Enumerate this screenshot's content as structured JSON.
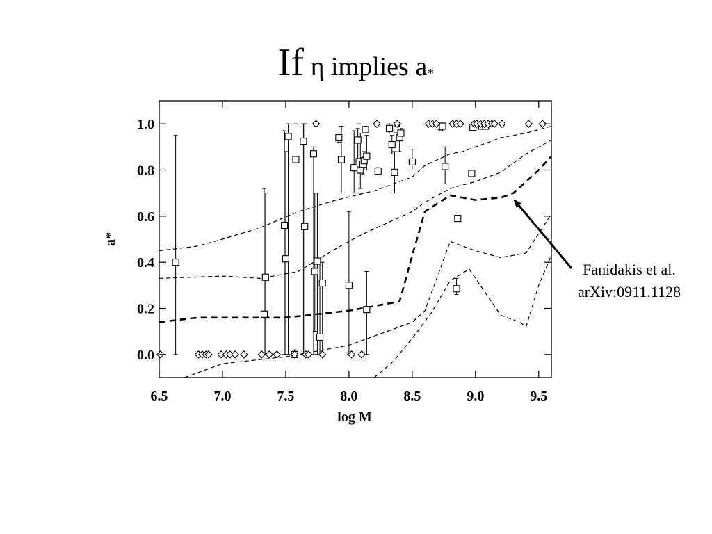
{
  "slide": {
    "title_main": "If",
    "title_rest": " η implies a",
    "title_sub": "*"
  },
  "annotation": {
    "line1": "Fanidakis et al.",
    "line2": "arXiv:0911.1128"
  },
  "chart_data": {
    "type": "scatter",
    "title": "",
    "xlabel": "log M",
    "ylabel": "a*",
    "xlim": [
      6.5,
      9.6
    ],
    "ylim": [
      -0.1,
      1.1
    ],
    "xticks": [
      "6.5",
      "7.0",
      "7.5",
      "8.0",
      "8.5",
      "9.0",
      "9.5"
    ],
    "yticks": [
      "0.0",
      "0.2",
      "0.4",
      "0.6",
      "0.8",
      "1.0"
    ],
    "xtick_values": [
      6.5,
      7.0,
      7.5,
      8.0,
      8.5,
      9.0,
      9.5
    ],
    "ytick_values": [
      0.0,
      0.2,
      0.4,
      0.6,
      0.8,
      1.0
    ],
    "grid": false,
    "series": [
      {
        "marker": "square",
        "points": [
          {
            "x": 6.63,
            "y": 0.4,
            "lo": 0.0,
            "hi": 0.95
          },
          {
            "x": 7.33,
            "y": 0.175,
            "lo": 0.0,
            "hi": 0.72
          },
          {
            "x": 7.34,
            "y": 0.335,
            "lo": 0.0,
            "hi": 0.7
          },
          {
            "x": 7.49,
            "y": 0.56,
            "lo": 0.0,
            "hi": 0.97
          },
          {
            "x": 7.5,
            "y": 0.415,
            "lo": 0.0,
            "hi": 0.88
          },
          {
            "x": 7.52,
            "y": 0.945,
            "lo": 0.0,
            "hi": 1.0
          },
          {
            "x": 7.57,
            "y": 0.0,
            "lo": -0.01,
            "hi": 0.02
          },
          {
            "x": 7.58,
            "y": 0.845,
            "lo": 0.0,
            "hi": 1.0
          },
          {
            "x": 7.64,
            "y": 0.925,
            "lo": 0.0,
            "hi": 1.0
          },
          {
            "x": 7.65,
            "y": 0.555,
            "lo": 0.0,
            "hi": 1.0
          },
          {
            "x": 7.72,
            "y": 0.87,
            "lo": 0.0,
            "hi": 0.9
          },
          {
            "x": 7.73,
            "y": 0.36,
            "lo": 0.1,
            "hi": 0.7
          },
          {
            "x": 7.75,
            "y": 0.405,
            "lo": 0.0,
            "hi": 0.7
          },
          {
            "x": 7.77,
            "y": 0.075,
            "lo": 0.0,
            "hi": 0.4
          },
          {
            "x": 7.79,
            "y": 0.31,
            "lo": 0.0,
            "hi": 0.4
          },
          {
            "x": 7.92,
            "y": 0.94,
            "lo": 0.92,
            "hi": 0.96
          },
          {
            "x": 7.94,
            "y": 0.845,
            "lo": 0.7,
            "hi": 0.99
          },
          {
            "x": 8.0,
            "y": 0.3,
            "lo": 0.0,
            "hi": 0.62
          },
          {
            "x": 8.04,
            "y": 0.81,
            "lo": 0.7,
            "hi": 0.97
          },
          {
            "x": 8.07,
            "y": 0.93,
            "lo": 0.85,
            "hi": 0.98
          },
          {
            "x": 8.08,
            "y": 0.835,
            "lo": 0.7,
            "hi": 1.0
          },
          {
            "x": 8.09,
            "y": 0.8,
            "lo": 0.72,
            "hi": 0.96
          },
          {
            "x": 8.11,
            "y": 0.825,
            "lo": 0.78,
            "hi": 0.86
          },
          {
            "x": 8.12,
            "y": 0.84,
            "lo": 0.8,
            "hi": 0.88
          },
          {
            "x": 8.13,
            "y": 0.975,
            "lo": 0.96,
            "hi": 0.99
          },
          {
            "x": 8.14,
            "y": 0.86,
            "lo": 0.8,
            "hi": 0.95
          },
          {
            "x": 8.14,
            "y": 0.195,
            "lo": 0.0,
            "hi": 0.36
          },
          {
            "x": 8.23,
            "y": 0.795,
            "lo": 0.78,
            "hi": 0.81
          },
          {
            "x": 8.32,
            "y": 0.98,
            "lo": 0.96,
            "hi": 1.0
          },
          {
            "x": 8.34,
            "y": 0.91,
            "lo": 0.87,
            "hi": 0.95
          },
          {
            "x": 8.36,
            "y": 0.79,
            "lo": 0.7,
            "hi": 0.88
          },
          {
            "x": 8.38,
            "y": 0.975,
            "lo": 0.96,
            "hi": 0.99
          },
          {
            "x": 8.4,
            "y": 0.94,
            "lo": 0.88,
            "hi": 1.0
          },
          {
            "x": 8.41,
            "y": 0.96,
            "lo": 0.94,
            "hi": 0.98
          },
          {
            "x": 8.5,
            "y": 0.835,
            "lo": 0.8,
            "hi": 0.89
          },
          {
            "x": 8.72,
            "y": 0.99,
            "lo": 0.97,
            "hi": 1.0
          },
          {
            "x": 8.74,
            "y": 0.99,
            "lo": 0.97,
            "hi": 1.0
          },
          {
            "x": 8.76,
            "y": 0.815,
            "lo": 0.74,
            "hi": 0.9
          },
          {
            "x": 8.85,
            "y": 0.285,
            "lo": 0.26,
            "hi": 0.33
          },
          {
            "x": 8.86,
            "y": 0.59,
            "lo": 0.58,
            "hi": 0.6
          },
          {
            "x": 8.97,
            "y": 0.785,
            "lo": 0.77,
            "hi": 0.8
          },
          {
            "x": 8.98,
            "y": 0.985,
            "lo": 0.97,
            "hi": 1.0
          },
          {
            "x": 9.05,
            "y": 0.99,
            "lo": 0.98,
            "hi": 1.0
          },
          {
            "x": 9.08,
            "y": 0.99,
            "lo": 0.98,
            "hi": 1.0
          }
        ]
      },
      {
        "marker": "diamond",
        "points": [
          {
            "x": 6.51,
            "y": 0.0
          },
          {
            "x": 6.81,
            "y": 0.0
          },
          {
            "x": 6.84,
            "y": 0.0
          },
          {
            "x": 6.87,
            "y": 0.0
          },
          {
            "x": 6.89,
            "y": 0.0
          },
          {
            "x": 6.99,
            "y": 0.0
          },
          {
            "x": 7.03,
            "y": 0.0
          },
          {
            "x": 7.06,
            "y": 0.0
          },
          {
            "x": 7.1,
            "y": 0.0
          },
          {
            "x": 7.17,
            "y": 0.0
          },
          {
            "x": 7.31,
            "y": 0.0
          },
          {
            "x": 7.37,
            "y": 0.0
          },
          {
            "x": 7.43,
            "y": 0.0
          },
          {
            "x": 7.57,
            "y": 0.0
          },
          {
            "x": 7.66,
            "y": 0.0
          },
          {
            "x": 7.68,
            "y": 0.0
          },
          {
            "x": 7.79,
            "y": 0.0
          },
          {
            "x": 8.02,
            "y": 0.0
          },
          {
            "x": 8.1,
            "y": 0.0
          },
          {
            "x": 7.74,
            "y": 1.0
          },
          {
            "x": 8.22,
            "y": 1.0
          },
          {
            "x": 8.38,
            "y": 1.0
          },
          {
            "x": 8.63,
            "y": 1.0
          },
          {
            "x": 8.66,
            "y": 1.0
          },
          {
            "x": 8.69,
            "y": 1.0
          },
          {
            "x": 8.82,
            "y": 1.0
          },
          {
            "x": 8.85,
            "y": 1.0
          },
          {
            "x": 8.88,
            "y": 1.0
          },
          {
            "x": 8.99,
            "y": 1.0
          },
          {
            "x": 9.01,
            "y": 1.0
          },
          {
            "x": 9.04,
            "y": 1.0
          },
          {
            "x": 9.07,
            "y": 1.0
          },
          {
            "x": 9.1,
            "y": 1.0
          },
          {
            "x": 9.13,
            "y": 1.0
          },
          {
            "x": 9.15,
            "y": 1.0
          },
          {
            "x": 9.21,
            "y": 1.0
          },
          {
            "x": 9.42,
            "y": 1.0
          },
          {
            "x": 9.53,
            "y": 1.0
          }
        ]
      }
    ],
    "curves": [
      {
        "style": "thick-dashed",
        "points": [
          [
            6.5,
            0.14
          ],
          [
            6.8,
            0.16
          ],
          [
            7.0,
            0.16
          ],
          [
            7.5,
            0.16
          ],
          [
            8.0,
            0.19
          ],
          [
            8.4,
            0.23
          ],
          [
            8.5,
            0.43
          ],
          [
            8.6,
            0.62
          ],
          [
            8.8,
            0.69
          ],
          [
            9.0,
            0.67
          ],
          [
            9.2,
            0.68
          ],
          [
            9.3,
            0.7
          ],
          [
            9.5,
            0.8
          ],
          [
            9.6,
            0.86
          ]
        ]
      },
      {
        "style": "thin-dashed",
        "points": [
          [
            6.5,
            0.45
          ],
          [
            6.8,
            0.47
          ],
          [
            7.0,
            0.5
          ],
          [
            7.3,
            0.55
          ],
          [
            7.6,
            0.62
          ],
          [
            7.9,
            0.67
          ],
          [
            8.2,
            0.71
          ],
          [
            8.5,
            0.77
          ],
          [
            8.6,
            0.82
          ],
          [
            8.8,
            0.87
          ],
          [
            8.9,
            0.88
          ],
          [
            9.0,
            0.9
          ],
          [
            9.2,
            0.94
          ],
          [
            9.4,
            0.96
          ],
          [
            9.6,
            0.99
          ]
        ]
      },
      {
        "style": "thin-dashed",
        "points": [
          [
            6.5,
            0.33
          ],
          [
            7.0,
            0.34
          ],
          [
            7.3,
            0.33
          ],
          [
            7.6,
            0.36
          ],
          [
            7.9,
            0.46
          ],
          [
            8.1,
            0.52
          ],
          [
            8.3,
            0.57
          ],
          [
            8.5,
            0.62
          ],
          [
            8.6,
            0.66
          ],
          [
            8.8,
            0.72
          ],
          [
            9.0,
            0.75
          ],
          [
            9.2,
            0.79
          ],
          [
            9.4,
            0.87
          ],
          [
            9.6,
            0.93
          ]
        ]
      },
      {
        "style": "thin-dashed",
        "points": [
          [
            6.7,
            -0.1
          ],
          [
            7.0,
            -0.04
          ],
          [
            7.5,
            -0.01
          ],
          [
            8.0,
            0.04
          ],
          [
            8.3,
            0.1
          ],
          [
            8.5,
            0.14
          ],
          [
            8.6,
            0.19
          ],
          [
            8.8,
            0.49
          ],
          [
            8.9,
            0.47
          ],
          [
            9.0,
            0.45
          ],
          [
            9.2,
            0.42
          ],
          [
            9.4,
            0.44
          ],
          [
            9.6,
            0.61
          ]
        ]
      },
      {
        "style": "thin-dashed",
        "points": [
          [
            8.2,
            -0.1
          ],
          [
            8.35,
            -0.03
          ],
          [
            8.5,
            0.07
          ],
          [
            8.65,
            0.18
          ],
          [
            8.8,
            0.32
          ],
          [
            8.95,
            0.37
          ],
          [
            9.1,
            0.25
          ],
          [
            9.2,
            0.17
          ],
          [
            9.35,
            0.14
          ],
          [
            9.4,
            0.12
          ],
          [
            9.5,
            0.3
          ],
          [
            9.6,
            0.43
          ]
        ]
      }
    ]
  }
}
